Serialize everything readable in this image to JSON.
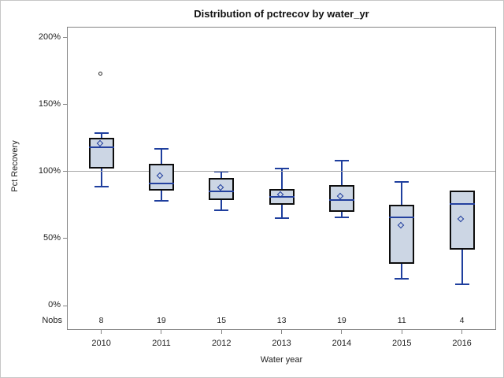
{
  "figure": {
    "background_color": "#ffffff",
    "border_color": "#c6c6c6"
  },
  "chart_data": {
    "type": "boxplot",
    "title": "Distribution of pctrecov by water_yr",
    "xlabel": "Water year",
    "ylabel": "Pct Recovery",
    "ylim": [
      0,
      200
    ],
    "ytick_values": [
      0,
      50,
      100,
      150,
      200
    ],
    "ytick_labels": [
      "0%",
      "50%",
      "100%",
      "150%",
      "200%"
    ],
    "reference_line_value": 100,
    "grid": "off",
    "legend": "none",
    "nobs_header": "Nobs",
    "categories": [
      "2010",
      "2011",
      "2012",
      "2013",
      "2014",
      "2015",
      "2016"
    ],
    "boxes": [
      {
        "category": "2010",
        "nobs": 8,
        "whisker_low": 89,
        "q1": 102,
        "median": 118,
        "q3": 125,
        "whisker_high": 129,
        "mean": 120,
        "outliers": [
          172
        ]
      },
      {
        "category": "2011",
        "nobs": 19,
        "whisker_low": 78,
        "q1": 86,
        "median": 91,
        "q3": 106,
        "whisker_high": 117,
        "mean": 96,
        "outliers": []
      },
      {
        "category": "2012",
        "nobs": 15,
        "whisker_low": 71,
        "q1": 79,
        "median": 85,
        "q3": 95,
        "whisker_high": 100,
        "mean": 87,
        "outliers": []
      },
      {
        "category": "2013",
        "nobs": 13,
        "whisker_low": 65,
        "q1": 75,
        "median": 81,
        "q3": 87,
        "whisker_high": 102,
        "mean": 82,
        "outliers": []
      },
      {
        "category": "2014",
        "nobs": 19,
        "whisker_low": 66,
        "q1": 70,
        "median": 79,
        "q3": 90,
        "whisker_high": 108,
        "mean": 81,
        "outliers": []
      },
      {
        "category": "2015",
        "nobs": 11,
        "whisker_low": 20,
        "q1": 31,
        "median": 66,
        "q3": 75,
        "whisker_high": 92,
        "mean": 59,
        "outliers": []
      },
      {
        "category": "2016",
        "nobs": 4,
        "whisker_low": 16,
        "q1": 42,
        "median": 76,
        "q3": 86,
        "whisker_high": 86,
        "mean": 64,
        "outliers": []
      }
    ],
    "colors": {
      "box_fill": "#ccd6e4",
      "box_border": "#0d0d0d",
      "whisker": "#1f3f9e",
      "median": "#24419f",
      "mean_marker": "#24419f",
      "outlier": "#2b2b2b",
      "reference_line": "#a7a7a7",
      "axis_border": "#848484",
      "text": "#222222"
    }
  }
}
